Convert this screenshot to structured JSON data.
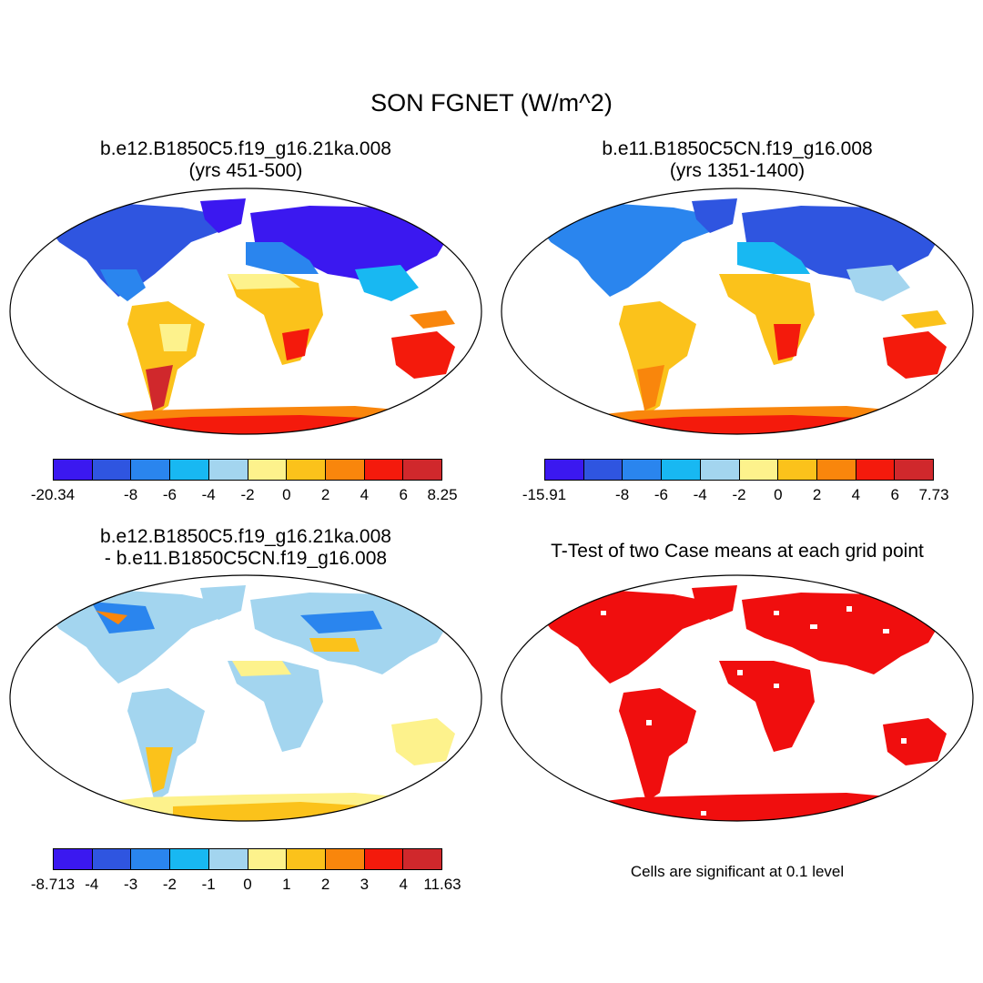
{
  "figure": {
    "title": "SON FGNET (W/m^2)",
    "panels": [
      {
        "title_line1": "b.e12.B1850C5.f19_g16.21ka.008",
        "title_line2": "(yrs 451-500)",
        "colorbar": {
          "colors": [
            "#3b18f0",
            "#2f55e0",
            "#2a85ee",
            "#18b8f2",
            "#a3d5ef",
            "#fdf28c",
            "#fbc21b",
            "#f9860c",
            "#f41a0c",
            "#d0282c"
          ],
          "labels": [
            "-20.34",
            "-8",
            "-6",
            "-4",
            "-2",
            "0",
            "2",
            "4",
            "6",
            "8.25"
          ]
        }
      },
      {
        "title_line1": "b.e11.B1850C5CN.f19_g16.008",
        "title_line2": "(yrs 1351-1400)",
        "colorbar": {
          "colors": [
            "#3b18f0",
            "#2f55e0",
            "#2a85ee",
            "#18b8f2",
            "#a3d5ef",
            "#fdf28c",
            "#fbc21b",
            "#f9860c",
            "#f41a0c",
            "#d0282c"
          ],
          "labels": [
            "-15.91",
            "-8",
            "-6",
            "-4",
            "-2",
            "0",
            "2",
            "4",
            "6",
            "7.73"
          ]
        }
      },
      {
        "title_line1": "b.e12.B1850C5.f19_g16.21ka.008",
        "title_line2": "- b.e11.B1850C5CN.f19_g16.008",
        "colorbar": {
          "colors": [
            "#3b18f0",
            "#2f55e0",
            "#2a85ee",
            "#18b8f2",
            "#a3d5ef",
            "#fdf28c",
            "#fbc21b",
            "#f9860c",
            "#f41a0c",
            "#d0282c"
          ],
          "labels": [
            "-8.713",
            "-4",
            "-3",
            "-2",
            "-1",
            "0",
            "1",
            "2",
            "3",
            "4",
            "11.63"
          ]
        }
      },
      {
        "title_line1": "T-Test of two Case means at each grid point",
        "note": "Cells are significant at 0.1 level"
      }
    ]
  }
}
